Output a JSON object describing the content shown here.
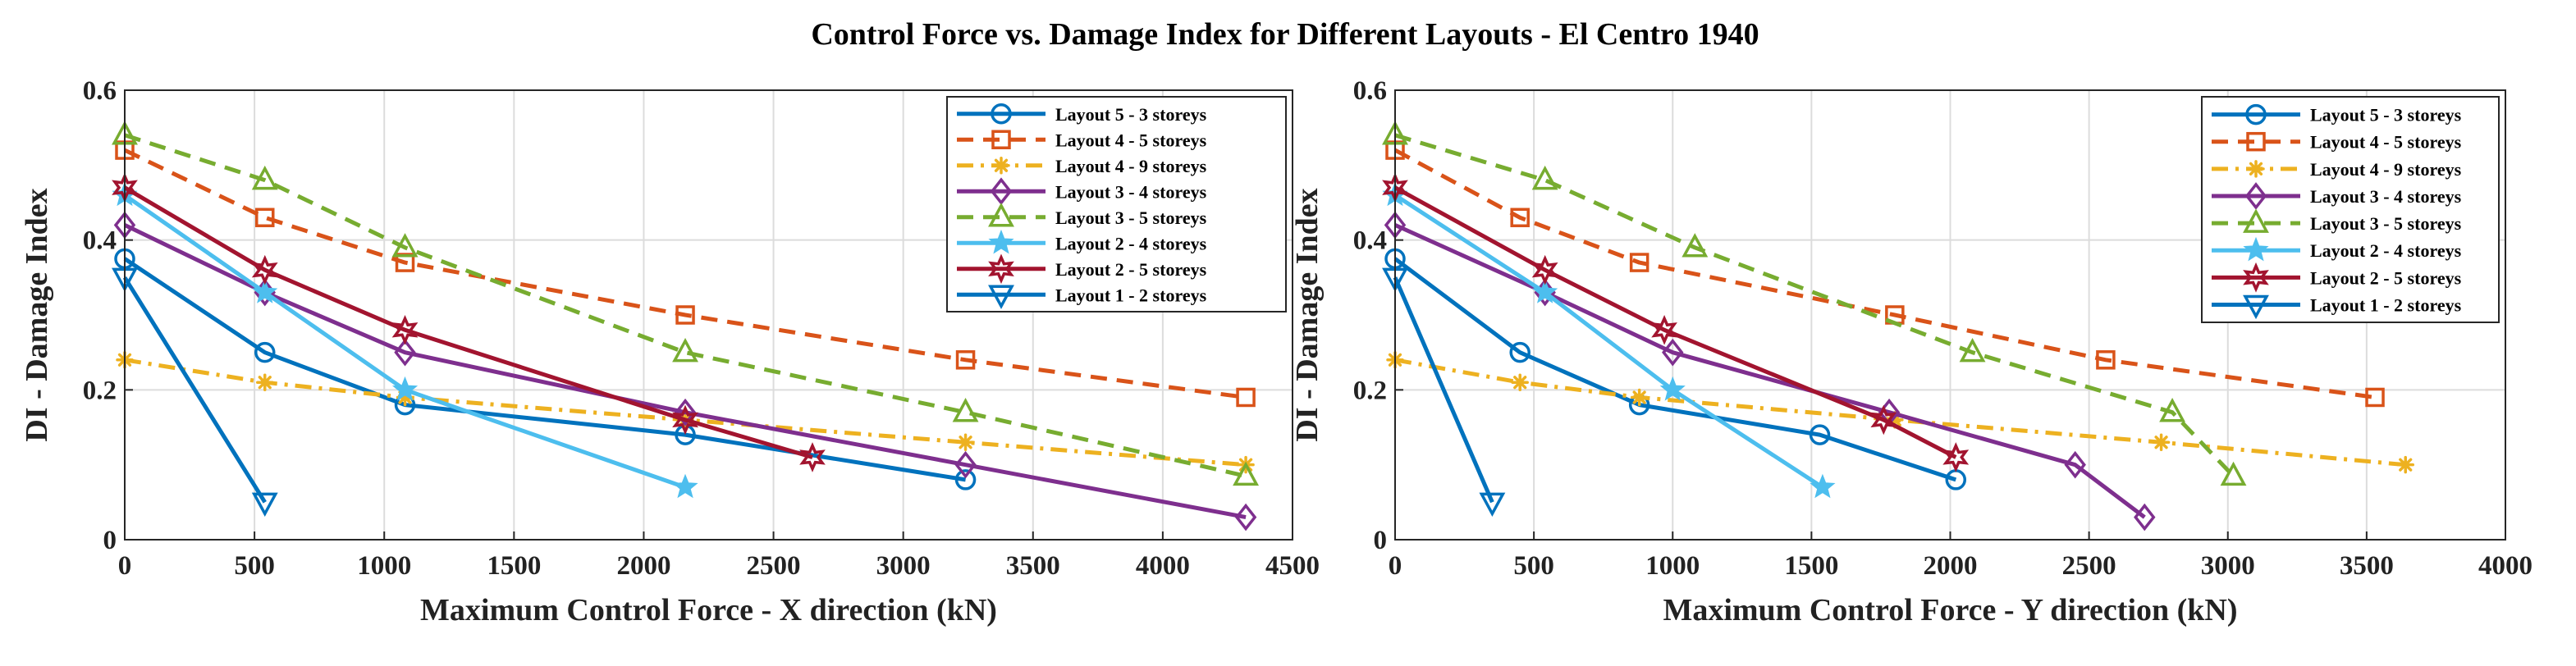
{
  "chart_data": {
    "title": "Control Force vs. Damage Index for Different Layouts - El Centro 1940",
    "series_styles": [
      {
        "name": "Layout 5 - 3 storeys",
        "color": "#0072BD",
        "dash": "solid",
        "marker": "circle"
      },
      {
        "name": "Layout 4 - 5 storeys",
        "color": "#D95319",
        "dash": "dashed",
        "marker": "square"
      },
      {
        "name": "Layout 4 - 9 storeys",
        "color": "#EDB120",
        "dash": "dashdot",
        "marker": "asterisk"
      },
      {
        "name": "Layout 3 - 4 storeys",
        "color": "#7E2F8E",
        "dash": "solid",
        "marker": "diamond"
      },
      {
        "name": "Layout 3 - 5 storeys",
        "color": "#77AC30",
        "dash": "dashed",
        "marker": "triangle-up"
      },
      {
        "name": "Layout 2 - 4 storeys",
        "color": "#4DBEEE",
        "dash": "solid",
        "marker": "pentagram"
      },
      {
        "name": "Layout 2 - 5 storeys",
        "color": "#A2142F",
        "dash": "solid",
        "marker": "hexagram"
      },
      {
        "name": "Layout 1 - 2 storeys",
        "color": "#0072BD",
        "dash": "solid",
        "marker": "triangle-down"
      }
    ],
    "charts": [
      {
        "type": "line",
        "xlabel": "Maximum Control Force  - X direction (kN)",
        "ylabel": "DI - Damage Index",
        "xlim": [
          0,
          4500
        ],
        "ylim": [
          0,
          0.6
        ],
        "xticks": [
          0,
          500,
          1000,
          1500,
          2000,
          2500,
          3000,
          3500,
          4000,
          4500
        ],
        "xtick_labels": [
          "0",
          "500",
          "1000",
          "1500",
          "2000",
          "2500",
          "3000",
          "3500",
          "4000",
          "4500"
        ],
        "yticks": [
          0,
          0.2,
          0.4,
          0.6
        ],
        "ytick_labels": [
          "0",
          "0.2",
          "0.4",
          "0.6"
        ],
        "grid": true,
        "legend_position": "top-right",
        "series": [
          {
            "name": "Layout 5 - 3 storeys",
            "x": [
              0,
              540,
              1080,
              2160,
              3240
            ],
            "y": [
              0.375,
              0.25,
              0.18,
              0.14,
              0.08
            ]
          },
          {
            "name": "Layout 4 - 5 storeys",
            "x": [
              0,
              540,
              1080,
              2160,
              3240,
              4320
            ],
            "y": [
              0.52,
              0.43,
              0.37,
              0.3,
              0.24,
              0.19
            ]
          },
          {
            "name": "Layout 4 - 9 storeys",
            "x": [
              0,
              540,
              1080,
              2160,
              3240,
              4320
            ],
            "y": [
              0.24,
              0.21,
              0.19,
              0.16,
              0.13,
              0.1
            ]
          },
          {
            "name": "Layout 3 - 4 storeys",
            "x": [
              0,
              540,
              1080,
              2160,
              3240,
              4320
            ],
            "y": [
              0.42,
              0.33,
              0.25,
              0.17,
              0.1,
              0.03
            ]
          },
          {
            "name": "Layout 3 - 5 storeys",
            "x": [
              0,
              540,
              1080,
              2160,
              3240,
              4320
            ],
            "y": [
              0.54,
              0.48,
              0.39,
              0.25,
              0.17,
              0.085
            ]
          },
          {
            "name": "Layout 2 - 4 storeys",
            "x": [
              0,
              540,
              1080,
              2160
            ],
            "y": [
              0.46,
              0.33,
              0.2,
              0.07
            ]
          },
          {
            "name": "Layout 2 - 5 storeys",
            "x": [
              0,
              540,
              1080,
              2160,
              2650
            ],
            "y": [
              0.47,
              0.36,
              0.28,
              0.16,
              0.11
            ]
          },
          {
            "name": "Layout 1 - 2 storeys",
            "x": [
              0,
              540
            ],
            "y": [
              0.35,
              0.05
            ]
          }
        ]
      },
      {
        "type": "line",
        "xlabel": "Maximum Control Force  - Y direction (kN)",
        "ylabel": "DI - Damage Index",
        "xlim": [
          0,
          4000
        ],
        "ylim": [
          0,
          0.6
        ],
        "xticks": [
          0,
          500,
          1000,
          1500,
          2000,
          2500,
          3000,
          3500,
          4000
        ],
        "xtick_labels": [
          "0",
          "500",
          "1000",
          "1500",
          "2000",
          "2500",
          "3000",
          "3500",
          "4000"
        ],
        "yticks": [
          0,
          0.2,
          0.4,
          0.6
        ],
        "ytick_labels": [
          "0",
          "0.2",
          "0.4",
          "0.6"
        ],
        "grid": true,
        "legend_position": "top-right",
        "series": [
          {
            "name": "Layout 5 - 3 storeys",
            "x": [
              0,
              450,
              880,
              1530,
              2020
            ],
            "y": [
              0.375,
              0.25,
              0.18,
              0.14,
              0.08
            ]
          },
          {
            "name": "Layout 4 - 5 storeys",
            "x": [
              0,
              450,
              880,
              1800,
              2560,
              3530
            ],
            "y": [
              0.52,
              0.43,
              0.37,
              0.3,
              0.24,
              0.19
            ]
          },
          {
            "name": "Layout 4 - 9 storeys",
            "x": [
              0,
              450,
              880,
              1800,
              2760,
              3640
            ],
            "y": [
              0.24,
              0.21,
              0.19,
              0.16,
              0.13,
              0.1
            ]
          },
          {
            "name": "Layout 3 - 4 storeys",
            "x": [
              0,
              540,
              1000,
              1780,
              2450,
              2700
            ],
            "y": [
              0.42,
              0.33,
              0.25,
              0.17,
              0.1,
              0.03
            ]
          },
          {
            "name": "Layout 3 - 5 storeys",
            "x": [
              0,
              540,
              1080,
              2080,
              2800,
              3020
            ],
            "y": [
              0.54,
              0.48,
              0.39,
              0.25,
              0.17,
              0.085
            ]
          },
          {
            "name": "Layout 2 - 4 storeys",
            "x": [
              0,
              540,
              1000,
              1540
            ],
            "y": [
              0.46,
              0.33,
              0.2,
              0.07
            ]
          },
          {
            "name": "Layout 2 - 5 storeys",
            "x": [
              0,
              540,
              970,
              1760,
              2020
            ],
            "y": [
              0.47,
              0.36,
              0.28,
              0.16,
              0.11
            ]
          },
          {
            "name": "Layout 1 - 2 storeys",
            "x": [
              0,
              350
            ],
            "y": [
              0.35,
              0.05
            ]
          }
        ]
      }
    ]
  }
}
